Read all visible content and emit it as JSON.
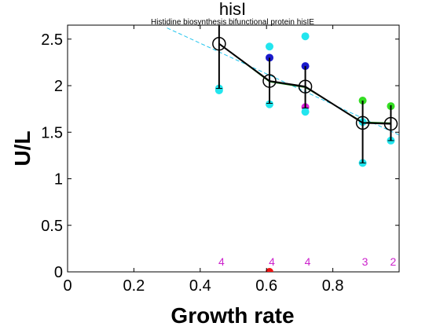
{
  "chart_data": {
    "type": "scatter",
    "title": "hisI",
    "subtitle": "Histidine biosynthesis bifunctional protein hisIE",
    "xlabel": "Growth rate",
    "ylabel": "U/L",
    "xlim": [
      0,
      1.0
    ],
    "ylim": [
      0,
      2.65
    ],
    "xticks": [
      "0",
      "0.2",
      "0.4",
      "0.6",
      "0.8"
    ],
    "yticks": [
      "0",
      "0.5",
      "1",
      "1.5",
      "2",
      "2.5"
    ],
    "grid": false,
    "colors": {
      "cyan": "#22e5ee",
      "blue": "#1a1acc",
      "magenta": "#dd22dd",
      "green": "#33dd22",
      "red": "#ee1111",
      "mean": "#000000",
      "fit": "#22c5ee",
      "count": "#cc22cc"
    },
    "mean_series": {
      "x": [
        0.457,
        0.609,
        0.717,
        0.89,
        0.975
      ],
      "y": [
        2.45,
        2.05,
        1.99,
        1.6,
        1.59
      ],
      "err_low": [
        1.97,
        1.81,
        1.76,
        1.17,
        1.41
      ],
      "err_high": [
        2.65,
        2.3,
        2.21,
        1.84,
        1.79
      ]
    },
    "median_series": {
      "x": [
        0.457,
        0.609,
        0.717,
        0.89,
        0.975
      ],
      "y": [
        2.45,
        2.04,
        1.98,
        1.61,
        1.6
      ]
    },
    "fit_line": {
      "x": [
        0.3,
        1.0
      ],
      "y": [
        2.62,
        1.47
      ]
    },
    "points": [
      {
        "x": 0.457,
        "y": 1.97,
        "color": "cyan"
      },
      {
        "x": 0.457,
        "y": 1.95,
        "color": "cyan"
      },
      {
        "x": 0.609,
        "y": 2.42,
        "color": "cyan"
      },
      {
        "x": 0.609,
        "y": 2.3,
        "color": "blue"
      },
      {
        "x": 0.609,
        "y": 1.8,
        "color": "cyan"
      },
      {
        "x": 0.609,
        "y": 0.0,
        "color": "red"
      },
      {
        "x": 0.717,
        "y": 2.53,
        "color": "cyan"
      },
      {
        "x": 0.717,
        "y": 2.21,
        "color": "blue"
      },
      {
        "x": 0.717,
        "y": 1.77,
        "color": "magenta"
      },
      {
        "x": 0.717,
        "y": 1.72,
        "color": "cyan"
      },
      {
        "x": 0.89,
        "y": 1.84,
        "color": "green"
      },
      {
        "x": 0.89,
        "y": 1.61,
        "color": "cyan"
      },
      {
        "x": 0.89,
        "y": 1.17,
        "color": "cyan"
      },
      {
        "x": 0.975,
        "y": 1.78,
        "color": "green"
      },
      {
        "x": 0.975,
        "y": 1.41,
        "color": "cyan"
      }
    ],
    "counts": [
      {
        "x": 0.457,
        "label": "4"
      },
      {
        "x": 0.609,
        "label": "4"
      },
      {
        "x": 0.717,
        "label": "4"
      },
      {
        "x": 0.89,
        "label": "3"
      },
      {
        "x": 0.975,
        "label": "2"
      }
    ]
  }
}
